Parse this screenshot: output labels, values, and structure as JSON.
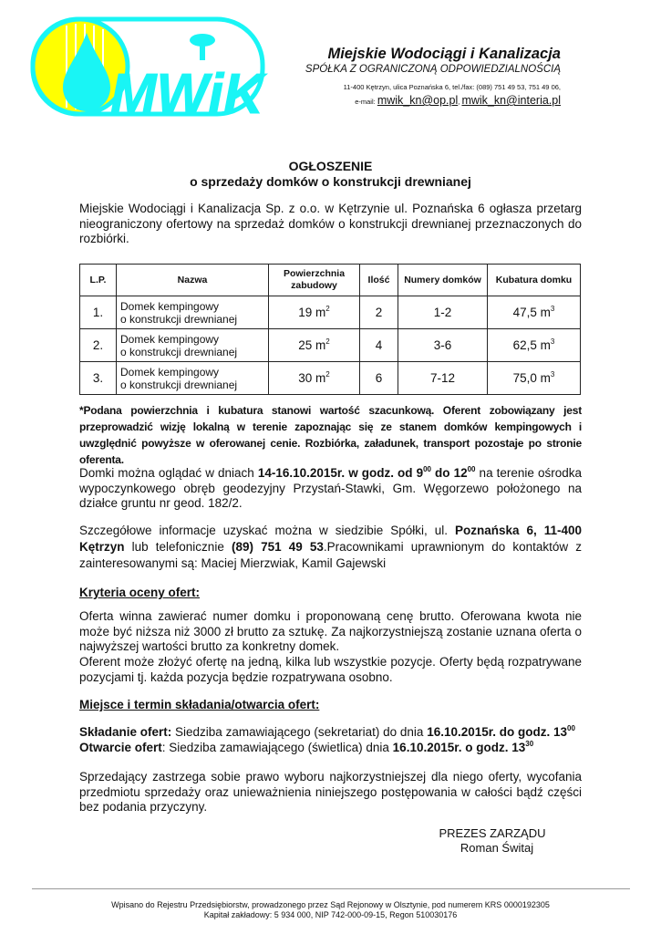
{
  "header": {
    "logo_text": "MWiK",
    "company": "Miejskie Wodociągi i Kanalizacja",
    "subtitle": "SPÓŁKA Z OGRANICZONĄ ODPOWIEDZIALNOŚCIĄ",
    "address": "11-400 Kętrzyn, ulica Poznańska 6, tel./fax: (089) 751 49 53, 751 49 06,",
    "email_label": "e-mail:",
    "email1": "mwik_kn@op.pl",
    "email_sep": ",",
    "email2": "mwik_kn@interia.pl"
  },
  "title": "OGŁOSZENIE",
  "subtitle": "o sprzedaży domków o konstrukcji drewnianej",
  "intro": "Miejskie Wodociągi i Kanalizacja Sp. z o.o. w Kętrzynie ul. Poznańska 6 ogłasza przetarg nieograniczony ofertowy na sprzedaż domków o konstrukcji drewnianej przeznaczonych do rozbiórki.",
  "table": {
    "headers": [
      "L.P.",
      "Nazwa",
      "Powierzchnia zabudowy",
      "Ilość",
      "Numery domków",
      "Kubatura domku"
    ],
    "rows": [
      {
        "lp": "1.",
        "nazwa1": "Domek kempingowy",
        "nazwa2": "o konstrukcji drewnianej",
        "pow": "19 m",
        "ilosc": "2",
        "numery": "1-2",
        "kub": "47,5 m"
      },
      {
        "lp": "2.",
        "nazwa1": "Domek kempingowy",
        "nazwa2": "o konstrukcji drewnianej",
        "pow": "25 m",
        "ilosc": "4",
        "numery": "3-6",
        "kub": "62,5 m"
      },
      {
        "lp": "3.",
        "nazwa1": "Domek kempingowy",
        "nazwa2": "o konstrukcji drewnianej",
        "pow": "30 m",
        "ilosc": "6",
        "numery": "7-12",
        "kub": "75,0 m"
      }
    ],
    "sq": "2",
    "cube": "3"
  },
  "note": "*Podana powierzchnia i kubatura stanowi wartość szacunkową. Oferent zobowiązany jest przeprowadzić wizję lokalną w terenie zapoznając się ze stanem domków kempingowych i uwzględnić powyższe w oferowanej cenie.  Rozbiórka, załadunek, transport pozostaje po stronie oferenta.",
  "viewing": {
    "a": "Domki można oglądać w dniach ",
    "b": "14-16.10.2015r. w godz. od 9",
    "s1": "00",
    "c": " do 12",
    "s2": "00",
    "d": " na terenie ośrodka wypoczynkowego obręb geodezyjny Przystań-Stawki, Gm. Węgorzewo położonego na działce gruntu nr geod. 182/2."
  },
  "info": {
    "a": "Szczegółowe informacje uzyskać można w siedzibie  Spółki, ul. ",
    "b": "Poznańska 6, 11-400 Kętrzyn",
    "c": " lub telefonicznie ",
    "d": "(89) 751 49 53",
    "e": ".Pracownikami uprawnionym do kontaktów z zainteresowanymi są: Maciej Mierzwiak, Kamil Gajewski"
  },
  "criteria": {
    "heading": "Kryteria oceny ofert:",
    "p1": "Oferta winna zawierać numer domku i proponowaną cenę brutto. Oferowana kwota nie może być niższa niż 3000 zł brutto za sztukę. Za najkorzystniejszą zostanie uznana oferta o najwyższej wartości brutto za konkretny domek.",
    "p2": "Oferent może złożyć ofertę na jedną, kilka lub wszystkie pozycje. Oferty będą rozpatrywane pozycjami tj. każda pozycja będzie rozpatrywana osobno."
  },
  "place": {
    "heading": "Miejsce i termin składania/otwarcia ofert:",
    "s_label": "Składanie ofert:",
    "s_text": " Siedziba zamawiającego (sekretariat) do dnia ",
    "s_bold": "16.10.2015r. do godz. 13",
    "s_sup": "00",
    "o_label": "Otwarcie ofert",
    "o_colon": ":",
    "o_text": "  Siedziba zamawiającego (świetlica) dnia ",
    "o_bold": "16.10.2015r. o godz. 13",
    "o_sup": "30"
  },
  "reservation": "Sprzedający zastrzega sobie prawo wyboru najkorzystniejszej dla niego oferty, wycofania przedmiotu sprzedaży oraz unieważnienia niniejszego postępowania w całości bądź części bez podania przyczyny.",
  "signature": {
    "role": "PREZES ZARZĄDU",
    "name": "Roman Świtaj"
  },
  "footer": {
    "line1": "Wpisano do Rejestru Przedsiębiorstw, prowadzonego przez Sąd Rejonowy w Olsztynie, pod numerem KRS 0000192305",
    "line2": "Kapitał zakładowy: 5 934 000, NIP 742-000-09-15, Regon 510030176"
  },
  "colors": {
    "logo_cyan": "#19f5f5",
    "logo_yellow": "#ffff00"
  }
}
